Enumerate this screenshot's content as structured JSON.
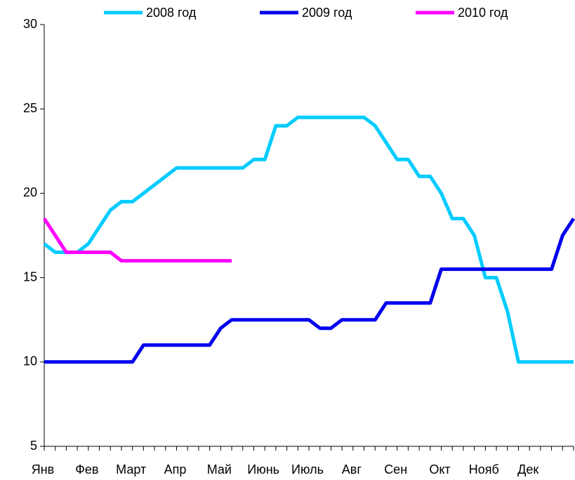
{
  "chart_data": {
    "type": "line",
    "categories": [
      "Янв",
      null,
      null,
      null,
      "Фев",
      null,
      null,
      null,
      "Март",
      null,
      null,
      null,
      "Апр",
      null,
      null,
      null,
      "Май",
      null,
      null,
      null,
      "Июнь",
      null,
      null,
      null,
      "Июль",
      null,
      null,
      null,
      "Авг",
      null,
      null,
      null,
      "Сен",
      null,
      null,
      null,
      "Окт",
      null,
      null,
      null,
      "Нояб",
      null,
      null,
      null,
      "Дек",
      null,
      null,
      null,
      null
    ],
    "series": [
      {
        "name": "2008 год",
        "color": "#00ccff",
        "values": [
          17,
          16.5,
          16.5,
          16.5,
          17,
          18,
          19,
          19.5,
          19.5,
          20,
          20.5,
          21,
          21.5,
          21.5,
          21.5,
          21.5,
          21.5,
          21.5,
          21.5,
          22,
          22,
          24,
          24,
          24.5,
          24.5,
          24.5,
          24.5,
          24.5,
          24.5,
          24.5,
          24,
          23,
          22,
          22,
          21,
          21,
          20,
          18.5,
          18.5,
          17.5,
          15,
          15,
          13,
          10,
          10,
          10,
          10,
          10,
          10
        ]
      },
      {
        "name": "2009 год",
        "color": "#0000ee",
        "values": [
          10,
          10,
          10,
          10,
          10,
          10,
          10,
          10,
          10,
          11,
          11,
          11,
          11,
          11,
          11,
          11,
          12,
          12.5,
          12.5,
          12.5,
          12.5,
          12.5,
          12.5,
          12.5,
          12.5,
          12,
          12,
          12.5,
          12.5,
          12.5,
          12.5,
          13.5,
          13.5,
          13.5,
          13.5,
          13.5,
          15.5,
          15.5,
          15.5,
          15.5,
          15.5,
          15.5,
          15.5,
          15.5,
          15.5,
          15.5,
          15.5,
          17.5,
          18.5
        ]
      },
      {
        "name": "2010 год",
        "color": "#ff00ff",
        "values": [
          18.5,
          17.5,
          16.5,
          16.5,
          16.5,
          16.5,
          16.5,
          16,
          16,
          16,
          16,
          16,
          16,
          16,
          16,
          16,
          16,
          16,
          null,
          null,
          null,
          null,
          null,
          null,
          null,
          null,
          null,
          null,
          null,
          null,
          null,
          null,
          null,
          null,
          null,
          null,
          null,
          null,
          null,
          null,
          null,
          null,
          null,
          null,
          null,
          null,
          null,
          null,
          null
        ]
      }
    ],
    "ylim": [
      5,
      30
    ],
    "yticks": [
      5,
      10,
      15,
      20,
      25,
      30
    ],
    "grid": false,
    "legend": "top"
  }
}
